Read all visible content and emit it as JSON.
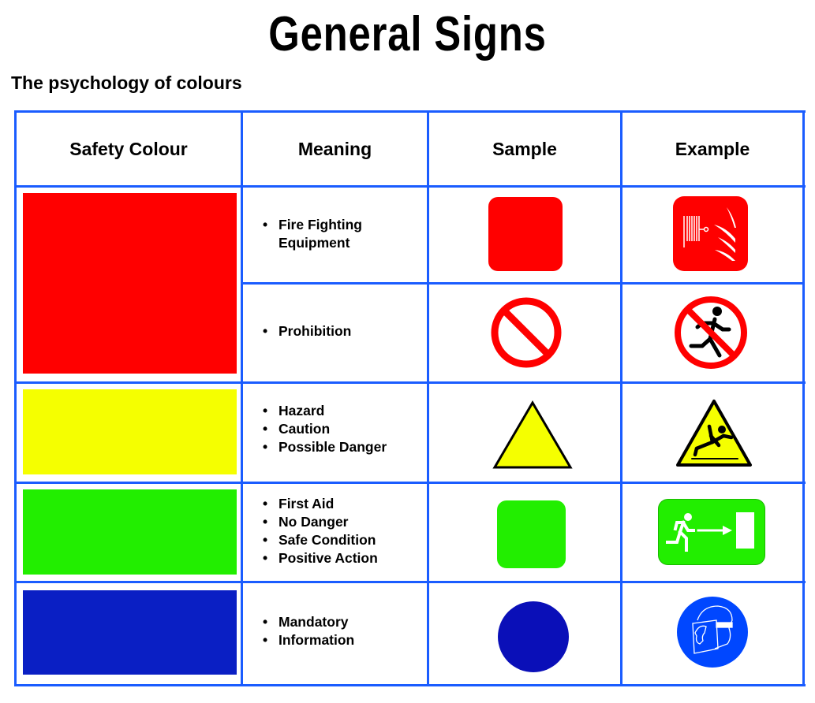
{
  "title": "General Signs",
  "subtitle": "The psychology of colours",
  "table": {
    "headers": [
      "Safety Colour",
      "Meaning",
      "Sample",
      "Example"
    ],
    "rows": [
      {
        "colour": "#ff0000",
        "meaning": [
          "Fire Fighting Equipment"
        ],
        "sample": "red-rounded-square",
        "example": "fire-hose-reel-icon"
      },
      {
        "colour": "#ff0000",
        "meaning": [
          "Prohibition"
        ],
        "sample": "prohibition-circle",
        "example": "no-running-icon"
      },
      {
        "colour": "#f5ff00",
        "meaning": [
          "Hazard",
          "Caution",
          "Possible Danger"
        ],
        "sample": "yellow-triangle",
        "example": "slippery-floor-warning-icon"
      },
      {
        "colour": "#22ee00",
        "meaning": [
          "First Aid",
          "No Danger",
          "Safe Condition",
          "Positive Action"
        ],
        "sample": "green-rounded-square",
        "example": "emergency-exit-icon"
      },
      {
        "colour": "#0a1fc4",
        "meaning": [
          "Mandatory",
          "Information"
        ],
        "sample": "blue-circle",
        "example": "face-shield-required-icon"
      }
    ]
  },
  "bullet": "•",
  "colors": {
    "border": "#1a5cff",
    "red": "#ff0000",
    "yellow": "#f5ff00",
    "green": "#22ee00",
    "blue_swatch": "#0a1fc4",
    "blue_sample": "#0a0fb8",
    "blue_sign": "#0047ff"
  }
}
